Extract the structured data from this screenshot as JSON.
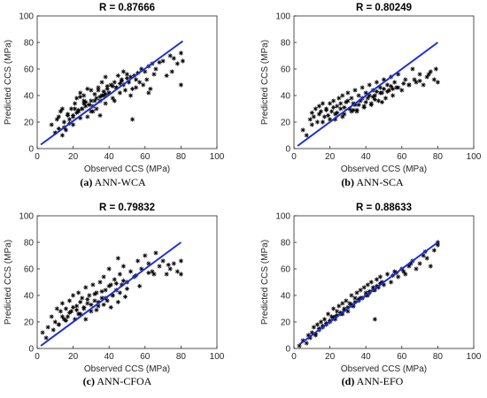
{
  "chart_data": [
    {
      "type": "scatter",
      "title": "R = 0.87666",
      "caption_letter": "(a)",
      "caption_text": "ANN-WCA",
      "xlabel": "Observed CCS (MPa)",
      "ylabel": "Predicted CCS (MPa)",
      "xlim": [
        0,
        100
      ],
      "ylim": [
        0,
        100
      ],
      "xticks": [
        0,
        20,
        40,
        60,
        80,
        100
      ],
      "yticks": [
        0,
        20,
        40,
        60,
        80,
        100
      ],
      "fit_line": {
        "x": [
          2,
          81
        ],
        "y": [
          3,
          81
        ]
      },
      "colors": {
        "points": "#000000",
        "fit_line": "#1c2fd6"
      },
      "x": [
        8,
        10,
        11,
        12,
        13,
        14,
        15,
        16,
        17,
        18,
        19,
        20,
        21,
        22,
        23,
        24,
        25,
        26,
        27,
        28,
        28,
        29,
        30,
        30,
        31,
        32,
        33,
        34,
        35,
        35,
        36,
        37,
        38,
        38,
        39,
        40,
        41,
        42,
        43,
        44,
        45,
        46,
        47,
        48,
        48,
        49,
        50,
        51,
        52,
        53,
        54,
        55,
        56,
        57,
        58,
        59,
        60,
        61,
        62,
        63,
        64,
        65,
        66,
        68,
        70,
        72,
        74,
        75,
        76,
        78,
        80,
        80,
        81,
        15,
        18,
        20,
        22,
        25,
        27,
        30,
        33,
        36,
        40,
        44,
        20,
        23,
        26,
        29,
        32,
        35,
        38,
        42,
        46,
        50,
        55,
        12,
        24,
        37,
        52,
        62,
        14,
        17,
        21,
        24,
        26,
        31,
        34,
        39,
        43,
        47,
        53
      ],
      "y": [
        18,
        12,
        22,
        15,
        28,
        10,
        20,
        14,
        25,
        22,
        30,
        18,
        34,
        38,
        28,
        42,
        30,
        40,
        35,
        45,
        24,
        33,
        28,
        44,
        32,
        41,
        30,
        46,
        36,
        25,
        50,
        40,
        54,
        34,
        45,
        42,
        48,
        38,
        50,
        46,
        55,
        42,
        52,
        48,
        58,
        44,
        56,
        50,
        40,
        22,
        55,
        46,
        57,
        50,
        60,
        48,
        58,
        52,
        62,
        45,
        64,
        56,
        60,
        65,
        66,
        55,
        70,
        58,
        68,
        64,
        72,
        48,
        66,
        16,
        19,
        24,
        27,
        30,
        32,
        36,
        38,
        40,
        42,
        46,
        25,
        29,
        34,
        33,
        36,
        39,
        41,
        47,
        49,
        53,
        52,
        24,
        39,
        43,
        54,
        42,
        30,
        26,
        30,
        23,
        36,
        28,
        44,
        47,
        36,
        51,
        45
      ]
    },
    {
      "type": "scatter",
      "title": "R = 0.80249",
      "caption_letter": "(b)",
      "caption_text": "ANN-SCA",
      "xlabel": "Observed CCS (MPa)",
      "ylabel": "Predicted CCS (MPa)",
      "xlim": [
        0,
        100
      ],
      "ylim": [
        0,
        100
      ],
      "xticks": [
        0,
        20,
        40,
        60,
        80,
        100
      ],
      "yticks": [
        0,
        20,
        40,
        60,
        80,
        100
      ],
      "fit_line": {
        "x": [
          2,
          80
        ],
        "y": [
          2,
          80
        ]
      },
      "colors": {
        "points": "#000000",
        "fit_line": "#1c2fd6"
      },
      "x": [
        5,
        7,
        9,
        10,
        11,
        12,
        13,
        14,
        15,
        16,
        17,
        18,
        19,
        20,
        21,
        22,
        23,
        24,
        25,
        26,
        27,
        28,
        29,
        30,
        31,
        32,
        33,
        34,
        35,
        36,
        37,
        38,
        39,
        40,
        41,
        42,
        43,
        44,
        45,
        46,
        47,
        48,
        49,
        50,
        51,
        52,
        53,
        54,
        55,
        56,
        57,
        58,
        60,
        62,
        64,
        66,
        68,
        70,
        72,
        74,
        76,
        78,
        79,
        80,
        10,
        14,
        18,
        22,
        26,
        30,
        34,
        38,
        42,
        46,
        50,
        54,
        20,
        24,
        28,
        32,
        36,
        40,
        44,
        48,
        52,
        58,
        64,
        70,
        16,
        27,
        33,
        39,
        45,
        55,
        61,
        67,
        75,
        23,
        35,
        43,
        49
      ],
      "y": [
        14,
        10,
        22,
        18,
        24,
        30,
        20,
        26,
        28,
        34,
        24,
        30,
        25,
        34,
        28,
        36,
        22,
        32,
        38,
        30,
        40,
        26,
        35,
        42,
        30,
        38,
        34,
        44,
        28,
        40,
        36,
        46,
        32,
        42,
        38,
        48,
        34,
        44,
        40,
        50,
        36,
        46,
        42,
        52,
        38,
        48,
        44,
        54,
        40,
        50,
        46,
        56,
        44,
        52,
        48,
        60,
        50,
        56,
        48,
        54,
        58,
        52,
        60,
        50,
        27,
        32,
        29,
        31,
        34,
        36,
        33,
        38,
        40,
        43,
        45,
        47,
        22,
        27,
        31,
        28,
        33,
        35,
        39,
        42,
        43,
        46,
        48,
        51,
        20,
        24,
        29,
        31,
        37,
        45,
        49,
        52,
        56,
        26,
        29,
        33,
        35
      ]
    },
    {
      "type": "scatter",
      "title": "R = 0.79832",
      "caption_letter": "(c)",
      "caption_text": "ANN-CFOA",
      "xlabel": "Observed CCS (MPa)",
      "ylabel": "Predicted CCS (MPa)",
      "xlim": [
        0,
        100
      ],
      "ylim": [
        0,
        100
      ],
      "xticks": [
        0,
        20,
        40,
        60,
        80,
        100
      ],
      "yticks": [
        0,
        20,
        40,
        60,
        80,
        100
      ],
      "fit_line": {
        "x": [
          2,
          80
        ],
        "y": [
          2,
          80
        ]
      },
      "colors": {
        "points": "#000000",
        "fit_line": "#1c2fd6"
      },
      "x": [
        3,
        5,
        6,
        8,
        9,
        10,
        11,
        12,
        13,
        14,
        15,
        16,
        17,
        18,
        19,
        20,
        21,
        22,
        23,
        24,
        25,
        26,
        27,
        28,
        29,
        30,
        31,
        32,
        33,
        34,
        35,
        36,
        37,
        38,
        39,
        40,
        41,
        42,
        43,
        44,
        45,
        46,
        47,
        48,
        50,
        52,
        54,
        56,
        58,
        60,
        62,
        64,
        66,
        68,
        70,
        72,
        74,
        76,
        78,
        80,
        80,
        14,
        18,
        22,
        26,
        30,
        34,
        38,
        42,
        46,
        50,
        20,
        24,
        28,
        32,
        36,
        40,
        44,
        48,
        55,
        62,
        12,
        27,
        33,
        41,
        49,
        57,
        65,
        73,
        16,
        23,
        37,
        45
      ],
      "y": [
        12,
        8,
        16,
        24,
        14,
        20,
        30,
        18,
        28,
        34,
        22,
        30,
        24,
        36,
        28,
        40,
        22,
        32,
        42,
        26,
        38,
        30,
        46,
        34,
        40,
        28,
        48,
        36,
        42,
        32,
        50,
        38,
        54,
        44,
        36,
        60,
        48,
        40,
        52,
        44,
        68,
        56,
        48,
        62,
        50,
        58,
        54,
        66,
        60,
        70,
        64,
        58,
        72,
        62,
        66,
        56,
        60,
        64,
        58,
        66,
        56,
        24,
        27,
        29,
        31,
        33,
        35,
        38,
        40,
        42,
        45,
        31,
        35,
        37,
        41,
        43,
        47,
        49,
        51,
        55,
        57,
        18,
        22,
        29,
        31,
        39,
        47,
        56,
        63,
        21,
        26,
        33,
        35
      ]
    },
    {
      "type": "scatter",
      "title": "R = 0.88633",
      "caption_letter": "(d)",
      "caption_text": "ANN-EFO",
      "xlabel": "Observed CCS (MPa)",
      "ylabel": "Predicted CCS (MPa)",
      "xlim": [
        0,
        100
      ],
      "ylim": [
        0,
        100
      ],
      "xticks": [
        0,
        20,
        40,
        60,
        80,
        100
      ],
      "yticks": [
        0,
        20,
        40,
        60,
        80,
        100
      ],
      "fit_line": {
        "x": [
          3,
          80
        ],
        "y": [
          3,
          80
        ]
      },
      "colors": {
        "points": "#000000",
        "fit_line": "#1c2fd6"
      },
      "x": [
        3,
        5,
        7,
        8,
        9,
        10,
        11,
        12,
        13,
        14,
        15,
        16,
        17,
        18,
        19,
        20,
        21,
        22,
        23,
        24,
        25,
        26,
        27,
        28,
        29,
        30,
        31,
        32,
        33,
        34,
        35,
        36,
        37,
        38,
        39,
        40,
        41,
        42,
        43,
        44,
        45,
        46,
        47,
        48,
        50,
        52,
        54,
        56,
        58,
        60,
        62,
        64,
        66,
        68,
        70,
        72,
        74,
        76,
        78,
        80,
        80,
        14,
        18,
        22,
        26,
        30,
        34,
        38,
        42,
        46,
        20,
        24,
        28,
        32,
        36,
        40,
        44,
        48,
        55,
        61,
        12,
        27,
        33,
        41,
        49,
        57,
        65,
        73,
        16,
        23,
        37,
        45
      ],
      "y": [
        2,
        6,
        4,
        10,
        8,
        12,
        16,
        10,
        18,
        14,
        20,
        16,
        22,
        18,
        26,
        20,
        24,
        30,
        22,
        28,
        32,
        26,
        34,
        30,
        36,
        28,
        34,
        40,
        32,
        38,
        42,
        36,
        44,
        38,
        46,
        40,
        48,
        42,
        50,
        44,
        22,
        52,
        46,
        54,
        48,
        56,
        50,
        58,
        54,
        60,
        56,
        62,
        66,
        60,
        64,
        70,
        68,
        62,
        74,
        78,
        80,
        15,
        19,
        23,
        27,
        31,
        35,
        38,
        43,
        47,
        21,
        25,
        29,
        33,
        37,
        42,
        46,
        49,
        55,
        58,
        11,
        26,
        32,
        40,
        50,
        57,
        64,
        73,
        17,
        24,
        38,
        44
      ]
    }
  ]
}
